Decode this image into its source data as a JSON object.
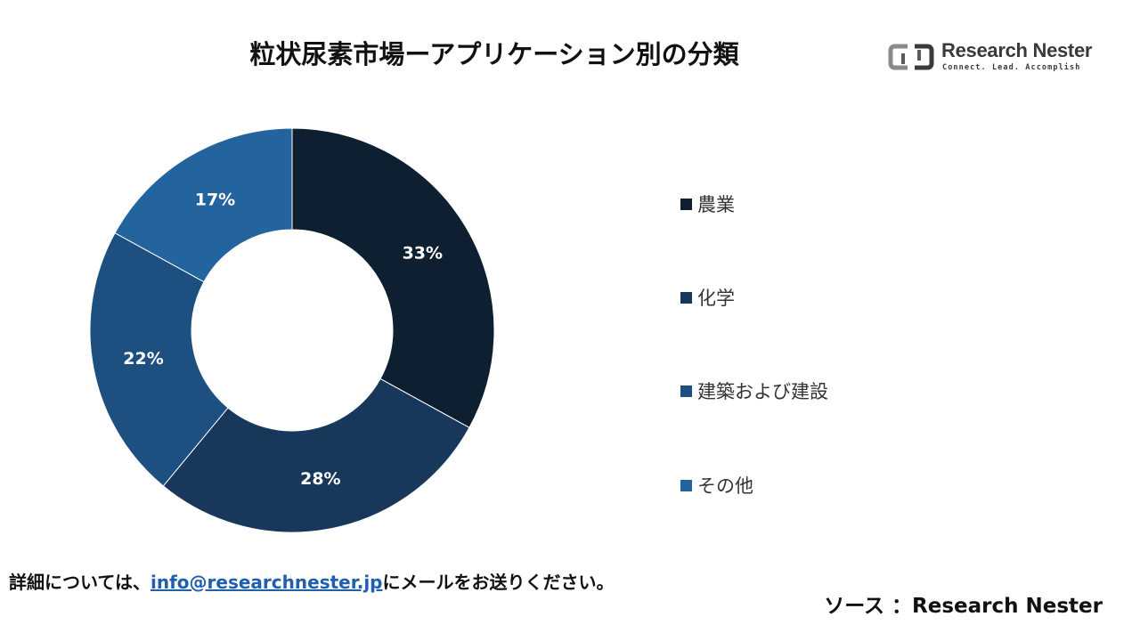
{
  "header": {
    "title": "粒状尿素市場ーアプリケーション別の分類"
  },
  "logo": {
    "name": "Research Nester",
    "tagline": "Connect. Lead. Accomplish"
  },
  "chart_data": {
    "type": "pie",
    "donut": true,
    "categories": [
      "農業",
      "化学",
      "建築および建設",
      "その他"
    ],
    "values": [
      33,
      28,
      22,
      17
    ],
    "value_labels": [
      "33%",
      "28%",
      "22%",
      "17%"
    ],
    "colors": [
      "#0d1f31",
      "#17385b",
      "#1d4f80",
      "#23649f"
    ],
    "legend_position": "right"
  },
  "footer": {
    "contact_prefix": "詳細については、",
    "contact_email": "info@researchnester.jp",
    "contact_suffix": "にメールをお送りください。",
    "source": "ソース ：Research Nester"
  }
}
